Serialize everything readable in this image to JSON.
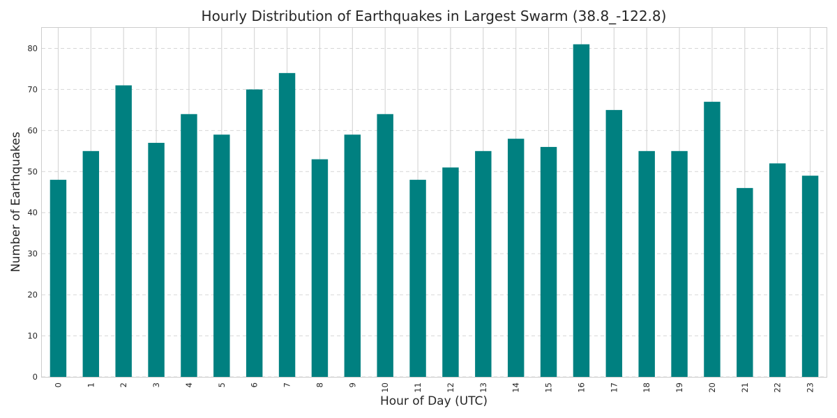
{
  "chart_data": {
    "type": "bar",
    "title": "Hourly Distribution of Earthquakes in Largest Swarm (38.8_-122.8)",
    "xlabel": "Hour of Day (UTC)",
    "ylabel": "Number of Earthquakes",
    "categories": [
      "0",
      "1",
      "2",
      "3",
      "4",
      "5",
      "6",
      "7",
      "8",
      "9",
      "10",
      "11",
      "12",
      "13",
      "14",
      "15",
      "16",
      "17",
      "18",
      "19",
      "20",
      "21",
      "22",
      "23"
    ],
    "values": [
      48,
      55,
      71,
      57,
      64,
      59,
      70,
      74,
      53,
      59,
      64,
      48,
      51,
      55,
      58,
      56,
      81,
      65,
      55,
      55,
      67,
      46,
      52,
      49
    ],
    "ylim": [
      0,
      85
    ],
    "yticks": [
      0,
      10,
      20,
      30,
      40,
      50,
      60,
      70,
      80
    ],
    "bar_color": "#008080",
    "grid": true,
    "legend": false
  }
}
